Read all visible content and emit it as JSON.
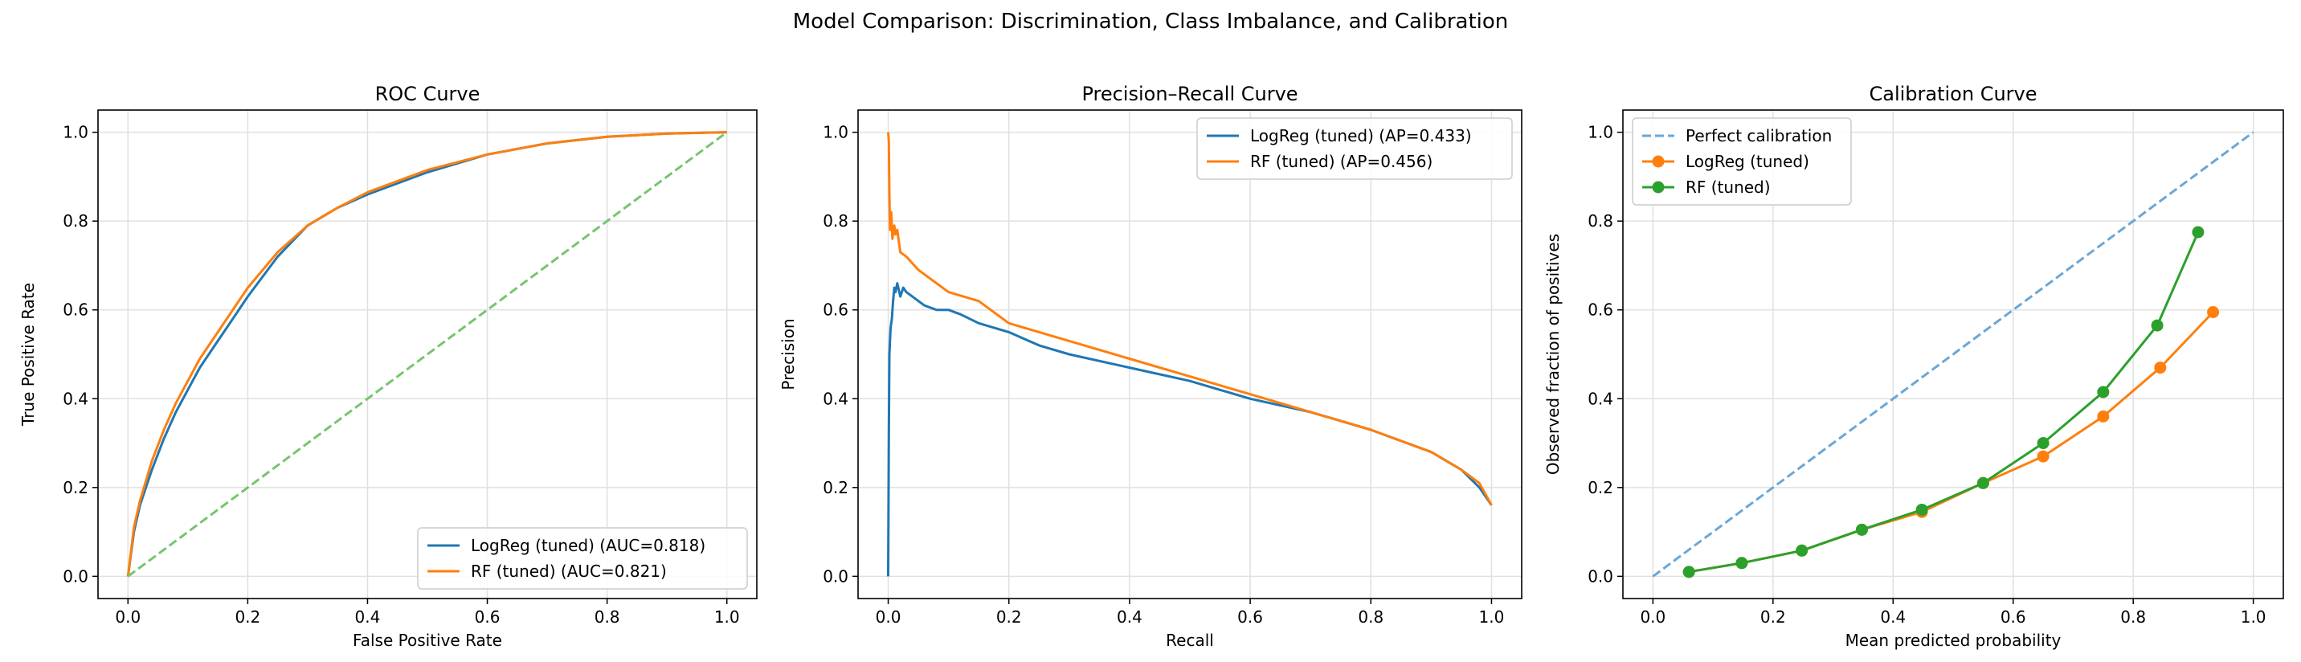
{
  "figure": {
    "suptitle": "Model Comparison: Discrimination, Class Imbalance, and Calibration"
  },
  "colors": {
    "blue": "#1f77b4",
    "orange": "#ff7f0e",
    "green": "#2ca02c",
    "diag_green": "#77c46e",
    "diag_blue": "#6aa7d6"
  },
  "chart_data": [
    {
      "type": "line",
      "title": "ROC Curve",
      "xlabel": "False Positive Rate",
      "ylabel": "True Positive Rate",
      "xlim": [
        -0.05,
        1.05
      ],
      "ylim": [
        -0.05,
        1.05
      ],
      "xticks": [
        0.0,
        0.2,
        0.4,
        0.6,
        0.8,
        1.0
      ],
      "yticks": [
        0.0,
        0.2,
        0.4,
        0.6,
        0.8,
        1.0
      ],
      "tick_labels": [
        "0.0",
        "0.2",
        "0.4",
        "0.6",
        "0.8",
        "1.0"
      ],
      "grid": true,
      "legend_position": "lower-right",
      "series": [
        {
          "name": "LogReg (tuned) (AUC=0.818)",
          "color": "#1f77b4",
          "x": [
            0,
            0.01,
            0.02,
            0.04,
            0.06,
            0.08,
            0.1,
            0.12,
            0.15,
            0.18,
            0.2,
            0.25,
            0.3,
            0.35,
            0.4,
            0.5,
            0.6,
            0.7,
            0.8,
            0.9,
            1.0
          ],
          "y": [
            0,
            0.1,
            0.16,
            0.24,
            0.31,
            0.37,
            0.42,
            0.47,
            0.53,
            0.59,
            0.63,
            0.72,
            0.79,
            0.83,
            0.86,
            0.91,
            0.95,
            0.975,
            0.99,
            0.997,
            1.0
          ]
        },
        {
          "name": "RF (tuned) (AUC=0.821)",
          "color": "#ff7f0e",
          "x": [
            0,
            0.01,
            0.02,
            0.04,
            0.06,
            0.08,
            0.1,
            0.12,
            0.15,
            0.18,
            0.2,
            0.25,
            0.3,
            0.35,
            0.4,
            0.5,
            0.6,
            0.7,
            0.8,
            0.9,
            1.0
          ],
          "y": [
            0,
            0.11,
            0.17,
            0.26,
            0.33,
            0.39,
            0.44,
            0.49,
            0.55,
            0.61,
            0.65,
            0.73,
            0.79,
            0.83,
            0.865,
            0.915,
            0.95,
            0.975,
            0.99,
            0.997,
            1.0
          ]
        },
        {
          "name": "",
          "color": "#77c46e",
          "style": "dashed",
          "x": [
            0,
            1
          ],
          "y": [
            0,
            1
          ]
        }
      ]
    },
    {
      "type": "line",
      "title": "Precision–Recall Curve",
      "xlabel": "Recall",
      "ylabel": "Precision",
      "xlim": [
        -0.05,
        1.05
      ],
      "ylim": [
        -0.05,
        1.05
      ],
      "xticks": [
        0.0,
        0.2,
        0.4,
        0.6,
        0.8,
        1.0
      ],
      "yticks": [
        0.0,
        0.2,
        0.4,
        0.6,
        0.8,
        1.0
      ],
      "tick_labels": [
        "0.0",
        "0.2",
        "0.4",
        "0.6",
        "0.8",
        "1.0"
      ],
      "grid": true,
      "legend_position": "upper-right",
      "series": [
        {
          "name": "LogReg (tuned) (AP=0.433)",
          "color": "#1f77b4",
          "x": [
            0,
            0.001,
            0.002,
            0.004,
            0.006,
            0.008,
            0.01,
            0.012,
            0.015,
            0.02,
            0.025,
            0.03,
            0.04,
            0.05,
            0.06,
            0.08,
            0.1,
            0.12,
            0.15,
            0.2,
            0.25,
            0.3,
            0.4,
            0.5,
            0.6,
            0.7,
            0.8,
            0.9,
            0.95,
            0.98,
            1.0
          ],
          "y": [
            0,
            0.32,
            0.5,
            0.56,
            0.58,
            0.62,
            0.65,
            0.64,
            0.66,
            0.63,
            0.65,
            0.64,
            0.63,
            0.62,
            0.61,
            0.6,
            0.6,
            0.59,
            0.57,
            0.55,
            0.52,
            0.5,
            0.47,
            0.44,
            0.4,
            0.37,
            0.33,
            0.28,
            0.24,
            0.2,
            0.16
          ]
        },
        {
          "name": "RF (tuned) (AP=0.456)",
          "color": "#ff7f0e",
          "x": [
            0,
            0.001,
            0.002,
            0.003,
            0.005,
            0.007,
            0.01,
            0.012,
            0.015,
            0.02,
            0.03,
            0.05,
            0.08,
            0.1,
            0.15,
            0.2,
            0.25,
            0.3,
            0.4,
            0.5,
            0.6,
            0.7,
            0.8,
            0.9,
            0.95,
            0.98,
            1.0
          ],
          "y": [
            1.0,
            0.98,
            0.86,
            0.78,
            0.82,
            0.76,
            0.79,
            0.77,
            0.78,
            0.73,
            0.72,
            0.69,
            0.66,
            0.64,
            0.62,
            0.57,
            0.55,
            0.53,
            0.49,
            0.45,
            0.41,
            0.37,
            0.33,
            0.28,
            0.24,
            0.21,
            0.16
          ]
        }
      ]
    },
    {
      "type": "line",
      "title": "Calibration Curve",
      "xlabel": "Mean predicted probability",
      "ylabel": "Observed fraction of positives",
      "xlim": [
        -0.05,
        1.05
      ],
      "ylim": [
        -0.05,
        1.05
      ],
      "xticks": [
        0.0,
        0.2,
        0.4,
        0.6,
        0.8,
        1.0
      ],
      "yticks": [
        0.0,
        0.2,
        0.4,
        0.6,
        0.8,
        1.0
      ],
      "tick_labels": [
        "0.0",
        "0.2",
        "0.4",
        "0.6",
        "0.8",
        "1.0"
      ],
      "grid": true,
      "legend_position": "upper-left",
      "series": [
        {
          "name": "Perfect calibration",
          "color": "#6aa7d6",
          "style": "dashed",
          "x": [
            0,
            1
          ],
          "y": [
            0,
            1
          ]
        },
        {
          "name": "LogReg (tuned)",
          "color": "#ff7f0e",
          "markers": true,
          "x": [
            0.06,
            0.148,
            0.248,
            0.348,
            0.448,
            0.55,
            0.65,
            0.75,
            0.845,
            0.933
          ],
          "y": [
            0.01,
            0.03,
            0.058,
            0.105,
            0.145,
            0.21,
            0.27,
            0.36,
            0.47,
            0.595
          ]
        },
        {
          "name": "RF (tuned)",
          "color": "#2ca02c",
          "markers": true,
          "x": [
            0.06,
            0.148,
            0.248,
            0.348,
            0.448,
            0.55,
            0.65,
            0.75,
            0.84,
            0.908
          ],
          "y": [
            0.01,
            0.03,
            0.058,
            0.105,
            0.15,
            0.21,
            0.3,
            0.415,
            0.565,
            0.775
          ]
        }
      ]
    }
  ]
}
